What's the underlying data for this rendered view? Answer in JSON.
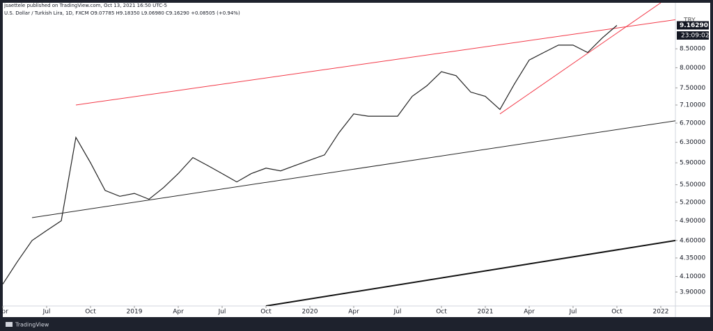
{
  "header": {
    "author_line": "jsaettele published on TradingView.com, Oct 13, 2021 16:50 UTC-5",
    "symbol_line": "U.S. Dollar / Turkish Lira, 1D, FXCM  O9.07785 H9.18350 L9.06980 C9.16290 +0.08505 (+0.94%)",
    "currency": "TRY",
    "countdown": "23:09:02",
    "brand": "TradingView"
  },
  "chart_data": {
    "type": "line",
    "log_scale": true,
    "x": [
      "2018-04",
      "2018-05",
      "2018-06",
      "2018-07",
      "2018-08",
      "2018-09",
      "2018-10",
      "2018-11",
      "2018-12",
      "2019-01",
      "2019-02",
      "2019-03",
      "2019-04",
      "2019-05",
      "2019-06",
      "2019-07",
      "2019-08",
      "2019-09",
      "2019-10",
      "2019-11",
      "2019-12",
      "2020-01",
      "2020-02",
      "2020-03",
      "2020-04",
      "2020-05",
      "2020-06",
      "2020-07",
      "2020-08",
      "2020-09",
      "2020-10",
      "2020-11",
      "2020-12",
      "2021-01",
      "2021-02",
      "2021-03",
      "2021-04",
      "2021-05",
      "2021-06",
      "2021-07",
      "2021-08",
      "2021-09",
      "2021-10"
    ],
    "series": [
      {
        "name": "USDTRY",
        "color": "#222222",
        "values": [
          4.0,
          4.3,
          4.6,
          4.75,
          4.9,
          6.4,
          5.9,
          5.4,
          5.3,
          5.35,
          5.25,
          5.45,
          5.7,
          6.0,
          5.85,
          5.7,
          5.55,
          5.7,
          5.8,
          5.75,
          5.85,
          5.95,
          6.05,
          6.5,
          6.9,
          6.85,
          6.85,
          6.85,
          7.3,
          7.55,
          7.9,
          7.8,
          7.4,
          7.3,
          7.0,
          7.6,
          8.2,
          8.4,
          8.6,
          8.6,
          8.4,
          8.8,
          9.1629
        ]
      }
    ],
    "last_price": {
      "value": 9.1629,
      "label": "9.16290"
    },
    "trendlines": [
      {
        "color": "#f23645",
        "width": 1,
        "x": [
          "2018-09",
          "2022-02"
        ],
        "values": [
          7.1,
          9.33
        ]
      },
      {
        "color": "#222222",
        "width": 1,
        "x": [
          "2018-06",
          "2022-02"
        ],
        "values": [
          4.95,
          6.75
        ]
      },
      {
        "color": "#111111",
        "width": 2,
        "x": [
          "2019-10",
          "2022-02"
        ],
        "values": [
          3.73,
          4.6
        ]
      },
      {
        "color": "#f23645",
        "width": 1,
        "x": [
          "2021-02",
          "2022-01"
        ],
        "values": [
          6.9,
          9.85
        ]
      }
    ],
    "xlim": [
      "2018-04",
      "2022-02"
    ],
    "xticks": [
      {
        "value": "2018-04",
        "label": "Apr"
      },
      {
        "value": "2018-07",
        "label": "Jul"
      },
      {
        "value": "2018-10",
        "label": "Oct"
      },
      {
        "value": "2019-01",
        "label": "2019"
      },
      {
        "value": "2019-04",
        "label": "Apr"
      },
      {
        "value": "2019-07",
        "label": "Jul"
      },
      {
        "value": "2019-10",
        "label": "Oct"
      },
      {
        "value": "2020-01",
        "label": "2020"
      },
      {
        "value": "2020-04",
        "label": "Apr"
      },
      {
        "value": "2020-07",
        "label": "Jul"
      },
      {
        "value": "2020-10",
        "label": "Oct"
      },
      {
        "value": "2021-01",
        "label": "2021"
      },
      {
        "value": "2021-04",
        "label": "Apr"
      },
      {
        "value": "2021-07",
        "label": "Jul"
      },
      {
        "value": "2021-10",
        "label": "Oct"
      },
      {
        "value": "2022-01",
        "label": "2022"
      }
    ],
    "ylim": [
      3.73,
      9.85
    ],
    "yticks": [
      {
        "value": 8.5,
        "label": "8.50000"
      },
      {
        "value": 8,
        "label": "8.00000"
      },
      {
        "value": 7.5,
        "label": "7.50000"
      },
      {
        "value": 7.1,
        "label": "7.10000"
      },
      {
        "value": 6.7,
        "label": "6.70000"
      },
      {
        "value": 6.3,
        "label": "6.30000"
      },
      {
        "value": 5.9,
        "label": "5.90000"
      },
      {
        "value": 5.5,
        "label": "5.50000"
      },
      {
        "value": 5.2,
        "label": "5.20000"
      },
      {
        "value": 4.9,
        "label": "4.90000"
      },
      {
        "value": 4.6,
        "label": "4.60000"
      },
      {
        "value": 4.35,
        "label": "4.35000"
      },
      {
        "value": 4.1,
        "label": "4.10000"
      },
      {
        "value": 3.9,
        "label": "3.90000"
      }
    ]
  }
}
